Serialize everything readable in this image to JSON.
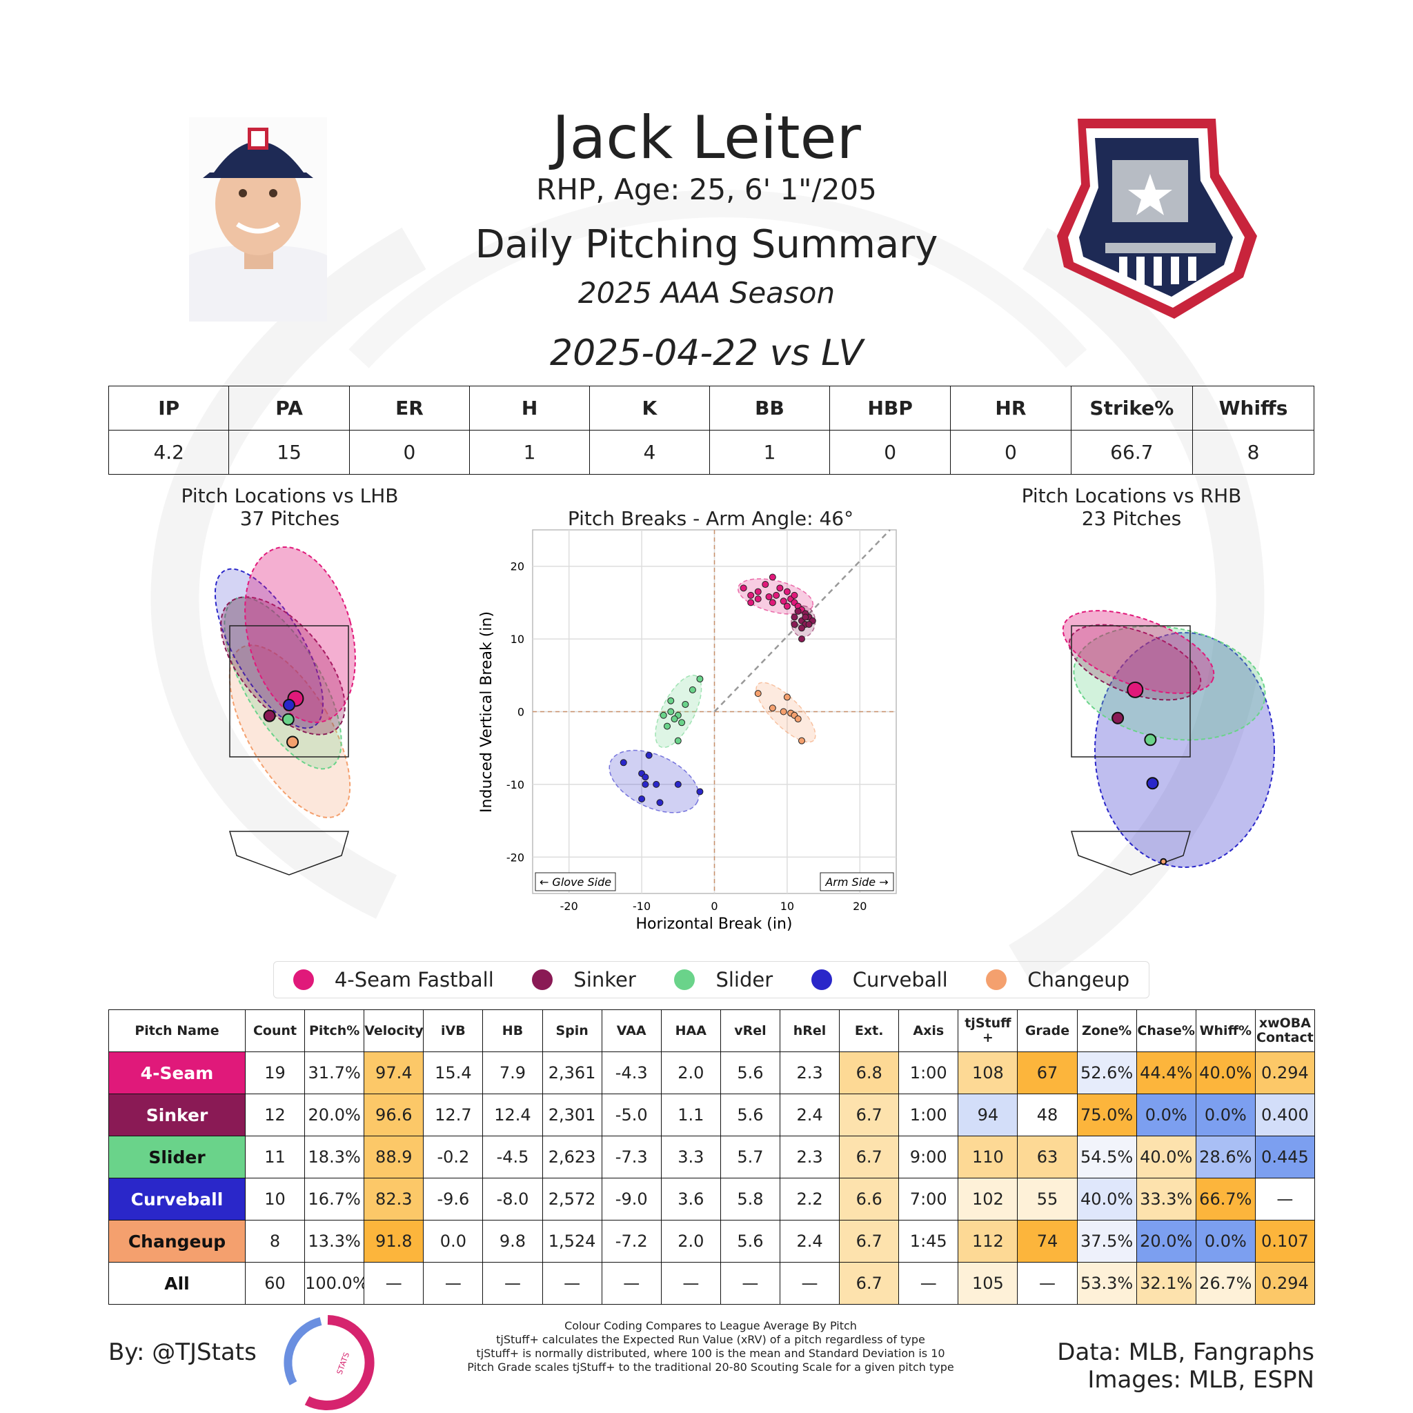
{
  "header": {
    "name": "Jack Leiter",
    "bio": "RHP, Age: 25, 6' 1\"/205",
    "summary_title": "Daily Pitching Summary",
    "season": "2025 AAA Season",
    "game": "2025-04-22 vs LV"
  },
  "game_stats": {
    "headers": [
      "IP",
      "PA",
      "ER",
      "H",
      "K",
      "BB",
      "HBP",
      "HR",
      "Strike%",
      "Whiffs"
    ],
    "values": [
      "4.2",
      "15",
      "0",
      "1",
      "4",
      "1",
      "0",
      "0",
      "66.7",
      "8"
    ]
  },
  "plots": {
    "lhb_title": "Pitch Locations vs LHB",
    "lhb_count": "37 Pitches",
    "rhb_title": "Pitch Locations vs RHB",
    "rhb_count": "23 Pitches",
    "glove_side": "← Glove Side",
    "arm_side": "Arm Side →"
  },
  "colors": {
    "4-Seam Fastball": "#e0197a",
    "Sinker": "#8a1a55",
    "Slider": "#6ad38a",
    "Curveball": "#2a27c9",
    "Changeup": "#f4a06e"
  },
  "legend": [
    "4-Seam Fastball",
    "Sinker",
    "Slider",
    "Curveball",
    "Changeup"
  ],
  "chart_data": [
    {
      "type": "scatter",
      "title": "Pitch Breaks - Arm Angle: 46°",
      "xlabel": "Horizontal Break (in)",
      "ylabel": "Induced Vertical Break (in)",
      "xlim": [
        -25,
        25
      ],
      "ylim": [
        -25,
        25
      ],
      "xticks": [
        -20,
        -10,
        0,
        10,
        20
      ],
      "yticks": [
        -20,
        -10,
        0,
        10,
        20
      ],
      "grid": true,
      "arm_angle_line_deg": 46,
      "series": [
        {
          "name": "4-Seam Fastball",
          "points": [
            [
              4,
              17
            ],
            [
              5,
              16
            ],
            [
              6,
              16.5
            ],
            [
              7,
              17.5
            ],
            [
              8,
              18.5
            ],
            [
              8.5,
              16
            ],
            [
              9,
              17
            ],
            [
              10,
              16.5
            ],
            [
              10.5,
              15.5
            ],
            [
              11,
              15
            ],
            [
              11.5,
              14.5
            ],
            [
              12,
              14
            ],
            [
              5,
              15
            ],
            [
              6,
              15.5
            ],
            [
              7.5,
              15.8
            ],
            [
              9.5,
              15.2
            ],
            [
              11,
              16
            ],
            [
              10,
              14.5
            ],
            [
              8,
              15
            ]
          ]
        },
        {
          "name": "Sinker",
          "points": [
            [
              11,
              13
            ],
            [
              12,
              12.5
            ],
            [
              12.5,
              12
            ],
            [
              13,
              13
            ],
            [
              11.5,
              13.8
            ],
            [
              12,
              11.5
            ],
            [
              12.5,
              13.5
            ],
            [
              13.5,
              12.5
            ],
            [
              11,
              12
            ],
            [
              12,
              10
            ],
            [
              13,
              12
            ],
            [
              12.5,
              13
            ]
          ]
        },
        {
          "name": "Slider",
          "points": [
            [
              -2,
              4.5
            ],
            [
              -3,
              3
            ],
            [
              -4,
              1
            ],
            [
              -5,
              -0.5
            ],
            [
              -6,
              0
            ],
            [
              -5.5,
              -1
            ],
            [
              -6.5,
              -2
            ],
            [
              -7,
              -0.5
            ],
            [
              -5,
              -4
            ],
            [
              -6,
              1.5
            ],
            [
              -4.5,
              -1.5
            ]
          ]
        },
        {
          "name": "Curveball",
          "points": [
            [
              -12.5,
              -7
            ],
            [
              -10,
              -8.5
            ],
            [
              -9.5,
              -10
            ],
            [
              -9,
              -6
            ],
            [
              -8,
              -10
            ],
            [
              -7.5,
              -12.5
            ],
            [
              -5,
              -10
            ],
            [
              -2,
              -11
            ],
            [
              -10,
              -12
            ],
            [
              -9.5,
              -9
            ]
          ]
        },
        {
          "name": "Changeup",
          "points": [
            [
              6,
              2.5
            ],
            [
              8,
              0.5
            ],
            [
              9.5,
              0
            ],
            [
              10,
              2
            ],
            [
              10.5,
              -0.2
            ],
            [
              11,
              -0.5
            ],
            [
              11.5,
              -1
            ],
            [
              12,
              -4
            ]
          ]
        }
      ]
    },
    {
      "type": "scatter",
      "title": "Pitch Locations vs LHB",
      "subtitle": "37 Pitches",
      "series": [
        {
          "name": "4-Seam Fastball",
          "mean": [
            0.15,
            2.85
          ]
        },
        {
          "name": "Sinker",
          "mean": [
            -0.45,
            2.45
          ]
        },
        {
          "name": "Slider",
          "mean": [
            -0.02,
            2.37
          ]
        },
        {
          "name": "Curveball",
          "mean": [
            0.0,
            2.7
          ]
        },
        {
          "name": "Changeup",
          "mean": [
            0.08,
            1.85
          ]
        }
      ]
    },
    {
      "type": "scatter",
      "title": "Pitch Locations vs RHB",
      "subtitle": "23 Pitches",
      "series": [
        {
          "name": "4-Seam Fastball",
          "mean": [
            0.1,
            3.05
          ]
        },
        {
          "name": "Sinker",
          "mean": [
            -0.3,
            2.4
          ]
        },
        {
          "name": "Slider",
          "mean": [
            0.45,
            1.9
          ]
        },
        {
          "name": "Curveball",
          "mean": [
            0.5,
            0.9
          ]
        },
        {
          "name": "Changeup",
          "mean": [
            0.75,
            -0.9
          ]
        }
      ]
    }
  ],
  "pitch_table": {
    "headers": [
      "Pitch Name",
      "Count",
      "Pitch%",
      "Velocity",
      "iVB",
      "HB",
      "Spin",
      "VAA",
      "HAA",
      "vRel",
      "hRel",
      "Ext.",
      "Axis",
      "tjStuff +",
      "Grade",
      "Zone%",
      "Chase%",
      "Whiff%",
      "xwOBA Contact"
    ],
    "rows": [
      {
        "name": "4-Seam",
        "name_bg": "#e0197a",
        "name_fg": "#ffffff",
        "cells": [
          "19",
          "31.7%",
          "97.4",
          "15.4",
          "7.9",
          "2,361",
          "-4.3",
          "2.0",
          "5.6",
          "2.3",
          "6.8",
          "1:00",
          "108",
          "67",
          "52.6%",
          "44.4%",
          "40.0%",
          "0.294"
        ],
        "bgs": [
          "#fff",
          "#fff",
          "#fcc868",
          "#fff",
          "#fff",
          "#fff",
          "#fff",
          "#fff",
          "#fff",
          "#fff",
          "#fdd995",
          "#fff",
          "#fdd995",
          "#fcb53c",
          "#e6ecfb",
          "#fcb53c",
          "#fcb53c",
          "#fcc868"
        ]
      },
      {
        "name": "Sinker",
        "name_bg": "#8a1a55",
        "name_fg": "#ffffff",
        "cells": [
          "12",
          "20.0%",
          "96.6",
          "12.7",
          "12.4",
          "2,301",
          "-5.0",
          "1.1",
          "5.6",
          "2.4",
          "6.7",
          "1:00",
          "94",
          "48",
          "75.0%",
          "0.0%",
          "0.0%",
          "0.400"
        ],
        "bgs": [
          "#fff",
          "#fff",
          "#fcc868",
          "#fff",
          "#fff",
          "#fff",
          "#fff",
          "#fff",
          "#fff",
          "#fff",
          "#fde2ad",
          "#fff",
          "#d3def9",
          "#fff",
          "#fcb53c",
          "#7c9ff0",
          "#7c9ff0",
          "#d3def9"
        ]
      },
      {
        "name": "Slider",
        "name_bg": "#6ad38a",
        "name_fg": "#111111",
        "cells": [
          "11",
          "18.3%",
          "88.9",
          "-0.2",
          "-4.5",
          "2,623",
          "-7.3",
          "3.3",
          "5.7",
          "2.3",
          "6.7",
          "9:00",
          "110",
          "63",
          "54.5%",
          "40.0%",
          "28.6%",
          "0.445"
        ],
        "bgs": [
          "#fff",
          "#fff",
          "#fcc868",
          "#fff",
          "#fff",
          "#fff",
          "#fff",
          "#fff",
          "#fff",
          "#fff",
          "#fde2ad",
          "#fff",
          "#fdd995",
          "#fdd995",
          "#f2f4fb",
          "#fde2ad",
          "#a9bff5",
          "#7c9ff0"
        ]
      },
      {
        "name": "Curveball",
        "name_bg": "#2a27c9",
        "name_fg": "#ffffff",
        "cells": [
          "10",
          "16.7%",
          "82.3",
          "-9.6",
          "-8.0",
          "2,572",
          "-9.0",
          "3.6",
          "5.8",
          "2.2",
          "6.6",
          "7:00",
          "102",
          "55",
          "40.0%",
          "33.3%",
          "66.7%",
          "—"
        ],
        "bgs": [
          "#fff",
          "#fff",
          "#fcc868",
          "#fff",
          "#fff",
          "#fff",
          "#fff",
          "#fff",
          "#fff",
          "#fff",
          "#fde2ad",
          "#fff",
          "#fef1d8",
          "#fef1d8",
          "#dfe7fb",
          "#fde2ad",
          "#fcb53c",
          "#fff"
        ]
      },
      {
        "name": "Changeup",
        "name_bg": "#f4a06e",
        "name_fg": "#111111",
        "cells": [
          "8",
          "13.3%",
          "91.8",
          "0.0",
          "9.8",
          "1,524",
          "-7.2",
          "2.0",
          "5.6",
          "2.4",
          "6.7",
          "1:45",
          "112",
          "74",
          "37.5%",
          "20.0%",
          "0.0%",
          "0.107"
        ],
        "bgs": [
          "#fff",
          "#fff",
          "#fcb53c",
          "#fff",
          "#fff",
          "#fff",
          "#fff",
          "#fff",
          "#fff",
          "#fff",
          "#fde2ad",
          "#fff",
          "#fdd995",
          "#fcb53c",
          "#eef1fb",
          "#7c9ff0",
          "#7c9ff0",
          "#fcb53c"
        ]
      },
      {
        "name": "All",
        "name_bg": "#ffffff",
        "name_fg": "#111111",
        "cells": [
          "60",
          "100.0%",
          "—",
          "—",
          "—",
          "—",
          "—",
          "—",
          "—",
          "—",
          "6.7",
          "—",
          "105",
          "—",
          "53.3%",
          "32.1%",
          "26.7%",
          "0.294"
        ],
        "bgs": [
          "#fff",
          "#fff",
          "#fff",
          "#fff",
          "#fff",
          "#fff",
          "#fff",
          "#fff",
          "#fff",
          "#fff",
          "#fde2ad",
          "#fff",
          "#fef1d8",
          "#fff",
          "#fef1d8",
          "#fde2ad",
          "#fef1d8",
          "#fcc868"
        ]
      }
    ]
  },
  "footer": {
    "by": "By: @TJStats",
    "logo_text": "STATS",
    "notes": [
      "Colour Coding Compares to League Average By Pitch",
      "tjStuff+ calculates the Expected Run Value (xRV) of a pitch regardless of type",
      "tjStuff+ is normally distributed, where 100 is the mean and Standard Deviation is 10",
      "Pitch Grade scales tjStuff+ to the traditional 20-80 Scouting Scale for a given pitch type"
    ],
    "data_source": "Data: MLB, Fangraphs",
    "image_source": "Images: MLB, ESPN"
  }
}
